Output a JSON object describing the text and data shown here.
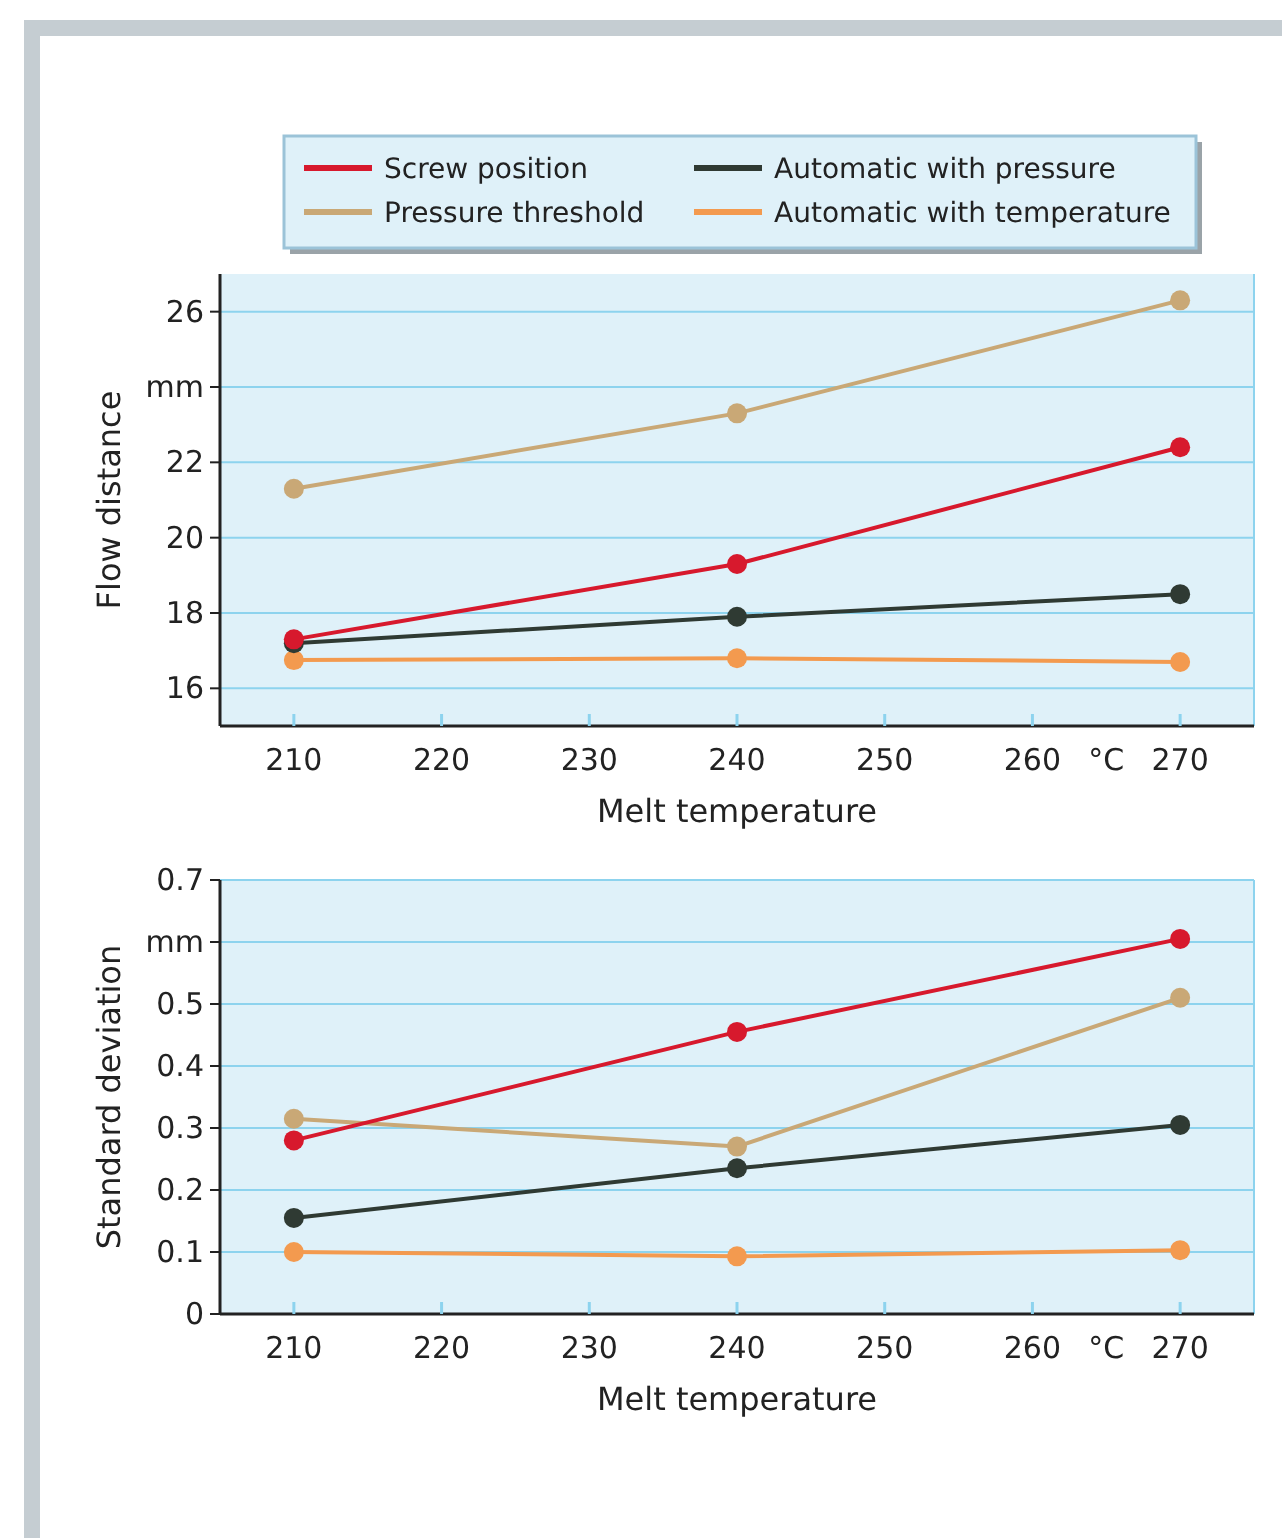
{
  "chart_data": [
    {
      "type": "line",
      "ylabel": "Flow distance",
      "xlabel": "Melt temperature",
      "x": [
        210,
        240,
        270
      ],
      "xlim": [
        205,
        275
      ],
      "xticks": [
        210,
        220,
        230,
        240,
        250,
        {
          "value": 265,
          "label": "°C"
        },
        260,
        270
      ],
      "ylim": [
        15,
        27
      ],
      "yticks": [
        16,
        18,
        20,
        22,
        {
          "value": 24,
          "label": "mm"
        },
        26
      ],
      "grid": "y",
      "legend": "top",
      "marker": "circle",
      "line_style": "solid",
      "series": [
        {
          "name": "Screw position",
          "color": "#d7192d",
          "values": [
            17.3,
            19.3,
            22.4
          ]
        },
        {
          "name": "Pressure threshold",
          "color": "#c9a876",
          "values": [
            21.3,
            23.3,
            26.3
          ]
        },
        {
          "name": "Automatic with pressure",
          "color": "#2f3a33",
          "values": [
            17.2,
            17.9,
            18.5
          ]
        },
        {
          "name": "Automatic with temperature",
          "color": "#f39a4f",
          "values": [
            16.75,
            16.8,
            16.7
          ]
        }
      ]
    },
    {
      "type": "line",
      "ylabel": "Standard deviation",
      "xlabel": "Melt temperature",
      "x": [
        210,
        240,
        270
      ],
      "xlim": [
        205,
        275
      ],
      "xticks": [
        210,
        220,
        230,
        240,
        250,
        {
          "value": 265,
          "label": "°C"
        },
        260,
        270
      ],
      "ylim": [
        0,
        0.7
      ],
      "yticks": [
        0,
        0.1,
        0.2,
        0.3,
        0.4,
        0.5,
        {
          "value": 0.6,
          "label": "mm"
        },
        0.7
      ],
      "grid": "y",
      "legend": false,
      "marker": "circle",
      "line_style": "solid",
      "series": [
        {
          "color": "#d7192d",
          "values": [
            0.28,
            0.455,
            0.605
          ]
        },
        {
          "color": "#c9a876",
          "values": [
            0.315,
            0.27,
            0.51
          ]
        },
        {
          "color": "#2f3a33",
          "values": [
            0.155,
            0.235,
            0.305
          ]
        },
        {
          "color": "#f39a4f",
          "values": [
            0.1,
            0.093,
            0.103
          ]
        }
      ]
    }
  ]
}
